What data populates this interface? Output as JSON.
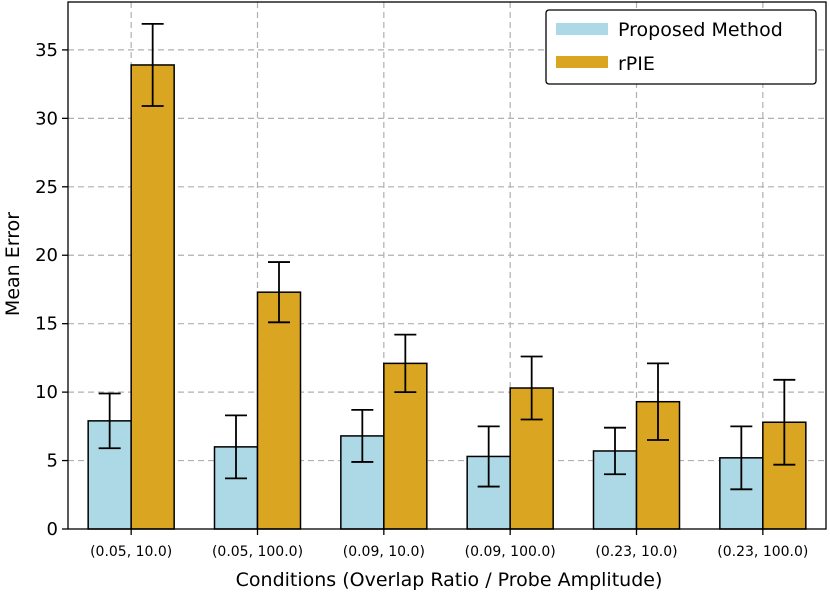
{
  "chart_data": {
    "type": "bar",
    "title": "",
    "xlabel": "Conditions (Overlap Ratio / Probe Amplitude)",
    "ylabel": "Mean Error",
    "ylim": [
      0,
      38.5
    ],
    "yticks": [
      0,
      5,
      10,
      15,
      20,
      25,
      30,
      35
    ],
    "grid": true,
    "legend_position": "top-right",
    "categories": [
      "(0.05, 10.0)",
      "(0.05, 100.0)",
      "(0.09, 10.0)",
      "(0.09, 100.0)",
      "(0.23, 10.0)",
      "(0.23, 100.0)"
    ],
    "series": [
      {
        "name": "Proposed Method",
        "color": "#add8e6",
        "values": [
          7.9,
          6.0,
          6.8,
          5.3,
          5.7,
          5.2
        ],
        "errors": [
          2.0,
          2.3,
          1.9,
          2.2,
          1.7,
          2.3
        ]
      },
      {
        "name": "rPIE",
        "color": "#daa520",
        "values": [
          33.9,
          17.3,
          12.1,
          10.3,
          9.3,
          7.8
        ],
        "errors": [
          3.0,
          2.2,
          2.1,
          2.3,
          2.8,
          3.1
        ]
      }
    ]
  }
}
